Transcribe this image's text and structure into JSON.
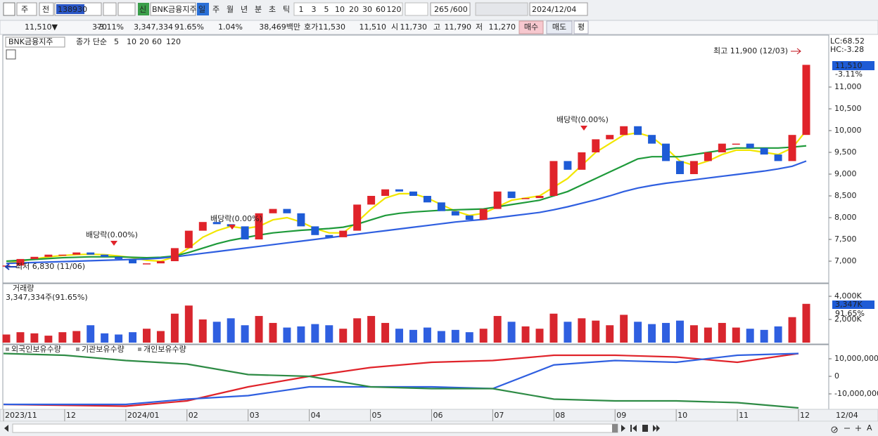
{
  "toolbar": {
    "market": "주",
    "prev": "전",
    "code": "138930",
    "new": "신",
    "name": "BNK금융지주",
    "periods": [
      "일",
      "주",
      "월",
      "년",
      "분",
      "초",
      "틱"
    ],
    "counts": [
      "1",
      "3",
      "5",
      "10",
      "20",
      "30",
      "60",
      "120"
    ],
    "shown": "265",
    "total": "/600",
    "date": "2024/12/04"
  },
  "quote": {
    "price": "11,510▼",
    "change": "370",
    "rate": "-3.11%",
    "volume": "3,347,334",
    "vol_ratio": "91.65%",
    "turnover": "1.04%",
    "amount": "38,469백만",
    "bid_label": "호가",
    "ask": "11,530",
    "bid": "11,510",
    "open_label": "시",
    "open": "11,730",
    "high_label": "고",
    "high": "11,790",
    "low_label": "저",
    "low": "11,270",
    "buy": "매수",
    "sell": "매도",
    "eval": "평"
  },
  "chart_data": [
    {
      "type": "candlestick",
      "legend_name": "BNK금융지주",
      "legend_title": "종가 단순",
      "ma_labels": [
        "5",
        "10",
        "20",
        "60",
        "120"
      ],
      "lc": "LC:68.52",
      "hc": "HC:-3.28",
      "last_price": "11,510",
      "last_rate": "-3.11%",
      "annotations": [
        "최고 11,900 (12/03)",
        "최저 6,830 (11/06)",
        "배당락(0.00%)",
        "배당락(0.00%)",
        "배당락(0.00%)"
      ],
      "ylim": [
        6500,
        12161
      ],
      "yticks": [
        {
          "value": 7000,
          "label": "7,000"
        },
        {
          "value": 7500,
          "label": "7,500"
        },
        {
          "value": 8000,
          "label": "8,000"
        },
        {
          "value": 8500,
          "label": "8,500"
        },
        {
          "value": 9000,
          "label": "9,000"
        },
        {
          "value": 9500,
          "label": "9,500"
        },
        {
          "value": 10000,
          "label": "10,000"
        },
        {
          "value": 10500,
          "label": "10,500"
        },
        {
          "value": 11000,
          "label": "11,000"
        }
      ],
      "close": [
        6900,
        7050,
        7100,
        7150,
        7150,
        7200,
        7150,
        7100,
        7050,
        6950,
        6950,
        7000,
        7300,
        7700,
        7900,
        7850,
        7800,
        7500,
        8100,
        8200,
        8100,
        7800,
        7600,
        7550,
        7700,
        8300,
        8500,
        8650,
        8600,
        8500,
        8350,
        8150,
        8050,
        7950,
        8200,
        8600,
        8450,
        8450,
        8500,
        9300,
        9100,
        9500,
        9800,
        9900,
        10100,
        9900,
        9700,
        9300,
        9000,
        9300,
        9500,
        9700,
        9700,
        9600,
        9450,
        9300,
        9900,
        11510
      ],
      "series": [
        {
          "name": "20",
          "color": "#f2e600",
          "values": [
            6950,
            7000,
            7050,
            7100,
            7130,
            7150,
            7160,
            7150,
            7120,
            7080,
            7020,
            7000,
            7100,
            7300,
            7550,
            7700,
            7800,
            7750,
            7800,
            7950,
            8000,
            7900,
            7750,
            7650,
            7650,
            7900,
            8200,
            8450,
            8550,
            8550,
            8450,
            8300,
            8150,
            8050,
            8100,
            8250,
            8400,
            8450,
            8500,
            8700,
            8900,
            9200,
            9500,
            9700,
            9900,
            9950,
            9850,
            9600,
            9300,
            9200,
            9300,
            9450,
            9550,
            9550,
            9500,
            9450,
            9600,
            10000
          ]
        },
        {
          "name": "60",
          "color": "#1e9a3a",
          "values": [
            7000,
            7020,
            7040,
            7060,
            7080,
            7090,
            7100,
            7100,
            7100,
            7090,
            7080,
            7090,
            7120,
            7200,
            7300,
            7400,
            7480,
            7540,
            7600,
            7650,
            7680,
            7710,
            7730,
            7750,
            7780,
            7850,
            7950,
            8050,
            8100,
            8130,
            8150,
            8170,
            8180,
            8190,
            8200,
            8250,
            8300,
            8350,
            8400,
            8500,
            8600,
            8750,
            8900,
            9050,
            9200,
            9350,
            9400,
            9400,
            9400,
            9450,
            9500,
            9550,
            9600,
            9600,
            9600,
            9600,
            9620,
            9650
          ]
        },
        {
          "name": "120",
          "color": "#2f5fe0",
          "values": [
            6950,
            6960,
            6970,
            6980,
            6990,
            7000,
            7010,
            7020,
            7030,
            7040,
            7050,
            7070,
            7100,
            7140,
            7180,
            7220,
            7260,
            7300,
            7340,
            7380,
            7420,
            7460,
            7500,
            7540,
            7580,
            7620,
            7660,
            7700,
            7740,
            7780,
            7820,
            7860,
            7900,
            7930,
            7960,
            8000,
            8040,
            8080,
            8120,
            8180,
            8250,
            8330,
            8410,
            8500,
            8600,
            8680,
            8740,
            8790,
            8830,
            8870,
            8910,
            8950,
            8990,
            9030,
            9070,
            9120,
            9180,
            9300
          ]
        }
      ]
    },
    {
      "type": "bar",
      "title": "거래량",
      "subtitle": "3,347,334주(91.65%)",
      "last_value": "3,347K",
      "last_rate": "91.65%",
      "ylim": [
        0,
        5030
      ],
      "yticks": [
        {
          "value": 4000,
          "label": "4,000K"
        },
        {
          "value": 2000,
          "label": "2,000K"
        }
      ],
      "values": [
        700,
        900,
        800,
        600,
        900,
        1000,
        1500,
        800,
        700,
        900,
        1200,
        1000,
        2500,
        3200,
        2000,
        1800,
        2100,
        1500,
        2300,
        1700,
        1300,
        1400,
        1600,
        1500,
        1200,
        2100,
        2300,
        1700,
        1200,
        1100,
        1300,
        1000,
        1100,
        900,
        1200,
        2300,
        1800,
        1400,
        1200,
        2500,
        1800,
        2100,
        1900,
        1500,
        2400,
        1800,
        1600,
        1700,
        1900,
        1500,
        1300,
        1700,
        1300,
        1200,
        1100,
        1400,
        2200,
        3347
      ]
    },
    {
      "type": "line",
      "categories": [
        "2023/11",
        "12",
        "2024/01",
        "02",
        "03",
        "04",
        "05",
        "06",
        "07",
        "08",
        "09",
        "10",
        "11",
        "12"
      ],
      "last_date": "12/04",
      "ylim": [
        -18400000,
        17600000
      ],
      "yticks": [
        {
          "value": 10000000,
          "label": "10,000,000"
        },
        0,
        {
          "value": -10000000,
          "label": "-10,000,000"
        }
      ],
      "series": [
        {
          "name": "외국인보유수량",
          "color": "#e0232a",
          "values": [
            -16000000,
            -16500000,
            -17000000,
            -14000000,
            -6000000,
            0,
            5000000,
            8000000,
            9000000,
            12000000,
            12000000,
            11000000,
            8000000,
            13000000
          ]
        },
        {
          "name": "기관보유수량",
          "color": "#2f5fe0",
          "values": [
            -16000000,
            -16000000,
            -16000000,
            -13000000,
            -11000000,
            -6000000,
            -6000000,
            -6000000,
            -7000000,
            6500000,
            9000000,
            8000000,
            12000000,
            13000000
          ]
        },
        {
          "name": "개인보유수량",
          "color": "#2e8b45",
          "values": [
            13000000,
            12000000,
            9000000,
            7000000,
            1000000,
            0,
            -6000000,
            -7000000,
            -7000000,
            -13000000,
            -14000000,
            -14000000,
            -15000000,
            -18000000
          ]
        }
      ]
    }
  ]
}
